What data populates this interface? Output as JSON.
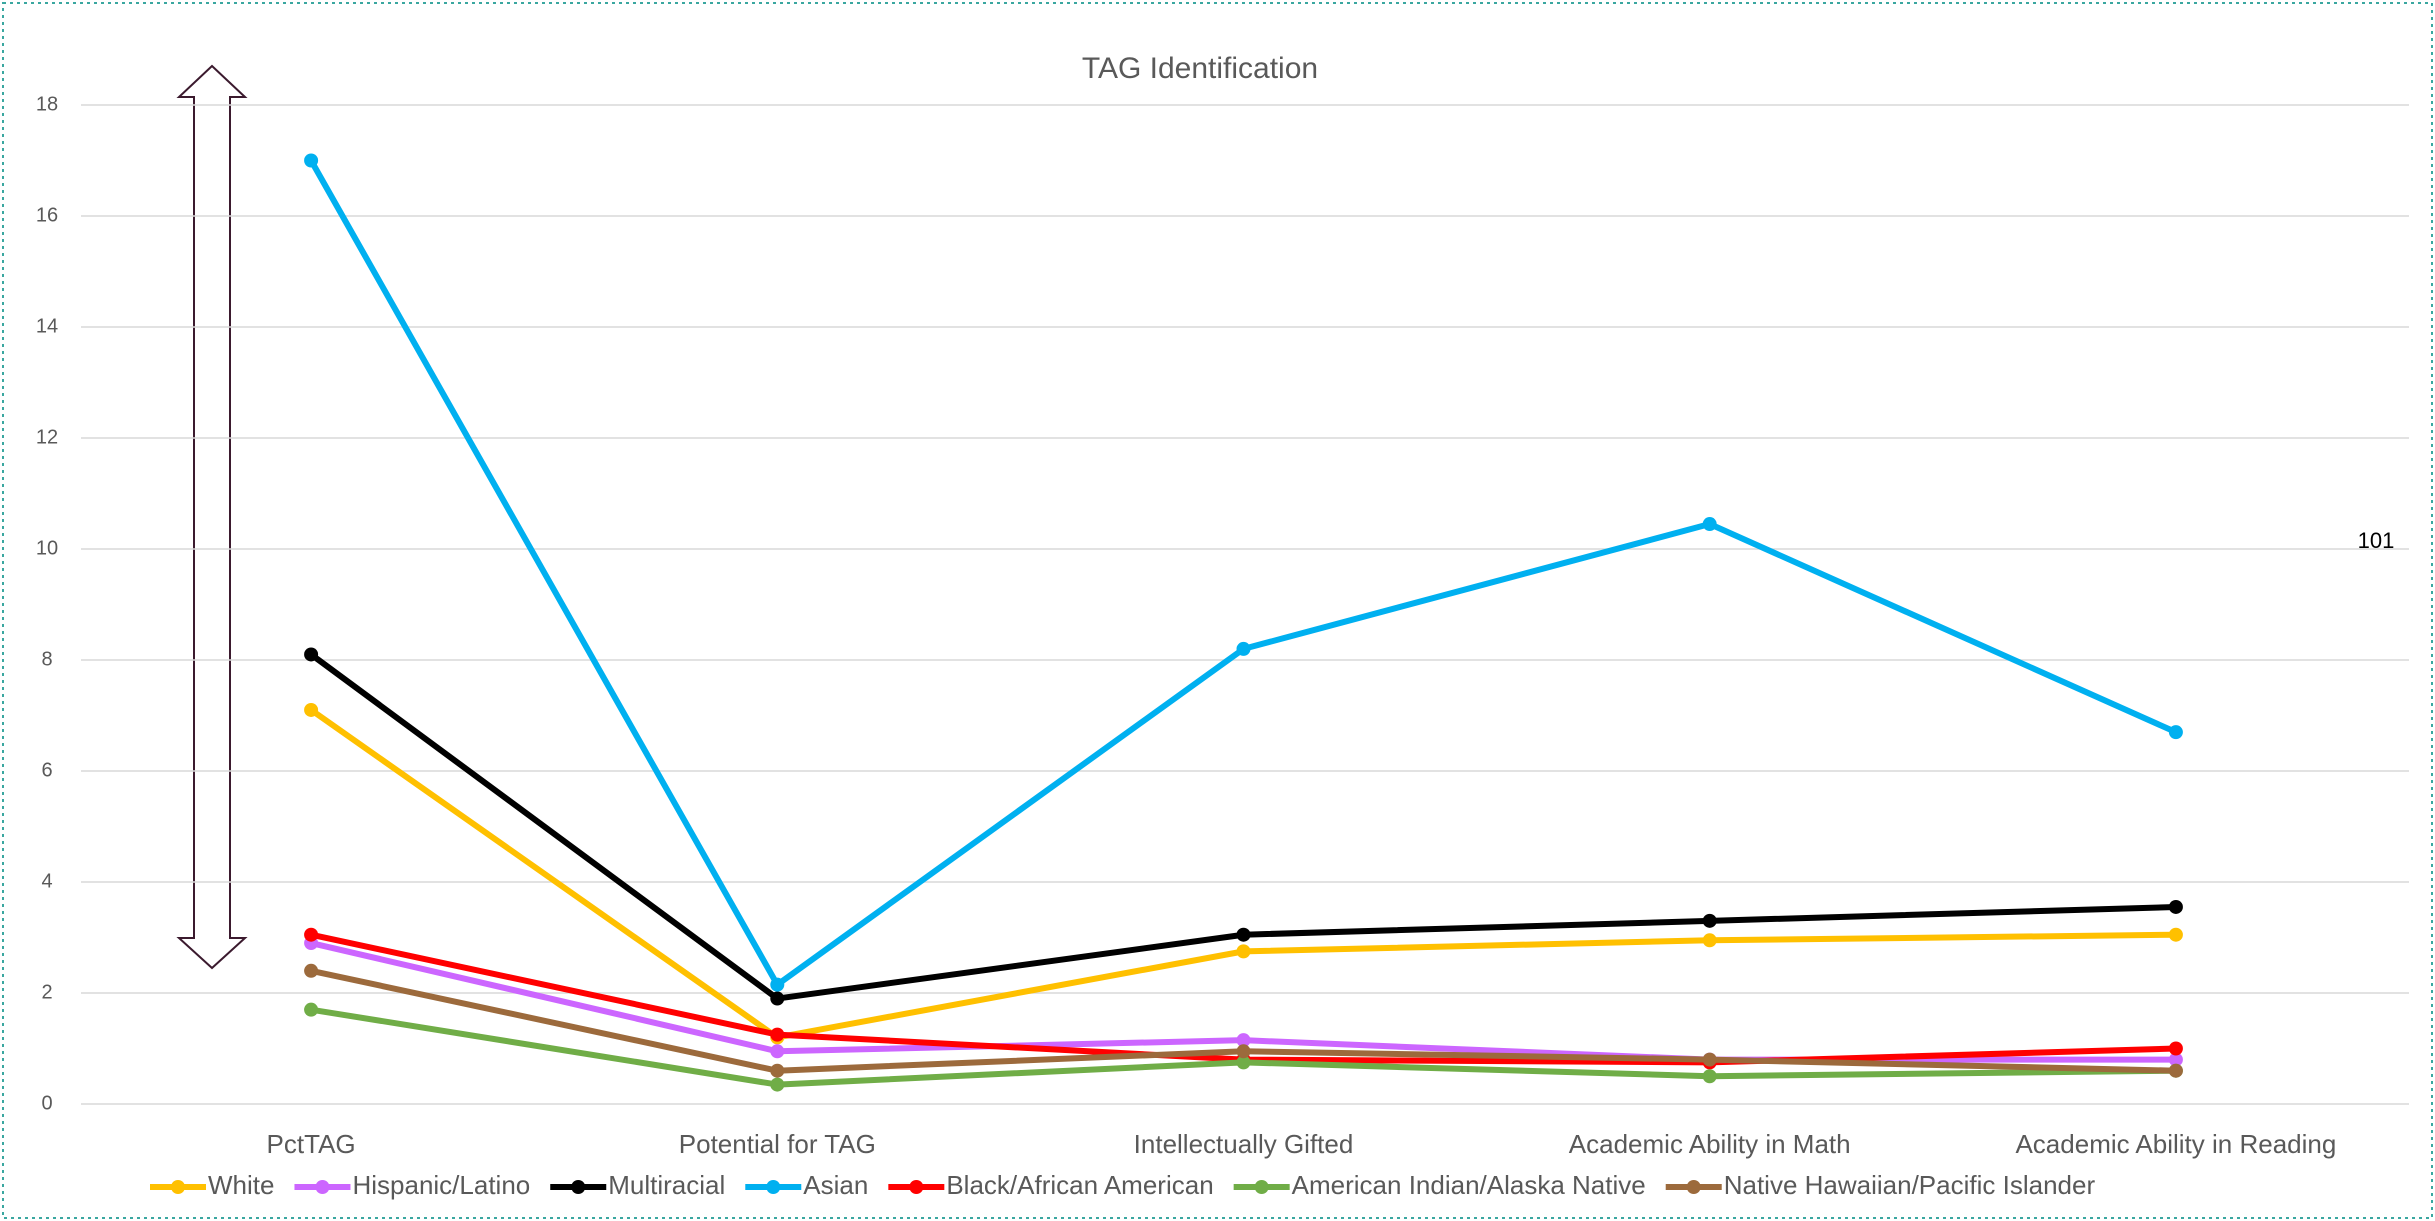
{
  "chart_data": {
    "type": "line",
    "title": "TAG Identification",
    "categories": [
      "PctTAG",
      "Potential for TAG",
      "Intellectually Gifted",
      "Academic Ability in Math",
      "Academic Ability in Reading"
    ],
    "series": [
      {
        "name": "White",
        "color": "#ffc000",
        "values": [
          7.1,
          1.2,
          2.75,
          2.95,
          3.05
        ]
      },
      {
        "name": "Hispanic/Latino",
        "color": "#cc66ff",
        "values": [
          2.9,
          0.95,
          1.15,
          0.8,
          0.8
        ]
      },
      {
        "name": "Multiracial",
        "color": "#000000",
        "values": [
          8.1,
          1.9,
          3.05,
          3.3,
          3.55
        ]
      },
      {
        "name": "Asian",
        "color": "#00b0f0",
        "values": [
          17.0,
          2.15,
          8.2,
          10.45,
          6.7
        ]
      },
      {
        "name": "Black/African American",
        "color": "#ff0000",
        "values": [
          3.05,
          1.25,
          0.8,
          0.75,
          1.0
        ]
      },
      {
        "name": "American Indian/Alaska Native",
        "color": "#70ad47",
        "values": [
          1.7,
          0.35,
          0.75,
          0.5,
          0.6
        ]
      },
      {
        "name": "Native Hawaiian/Pacific Islander",
        "color": "#9c6a3c",
        "values": [
          2.4,
          0.6,
          0.95,
          0.8,
          0.6
        ]
      }
    ],
    "ylim": [
      0,
      18
    ],
    "yticks": [
      0,
      2,
      4,
      6,
      8,
      10,
      12,
      14,
      16,
      18
    ],
    "grid": true,
    "legend": "bottom"
  },
  "page_number": "101"
}
